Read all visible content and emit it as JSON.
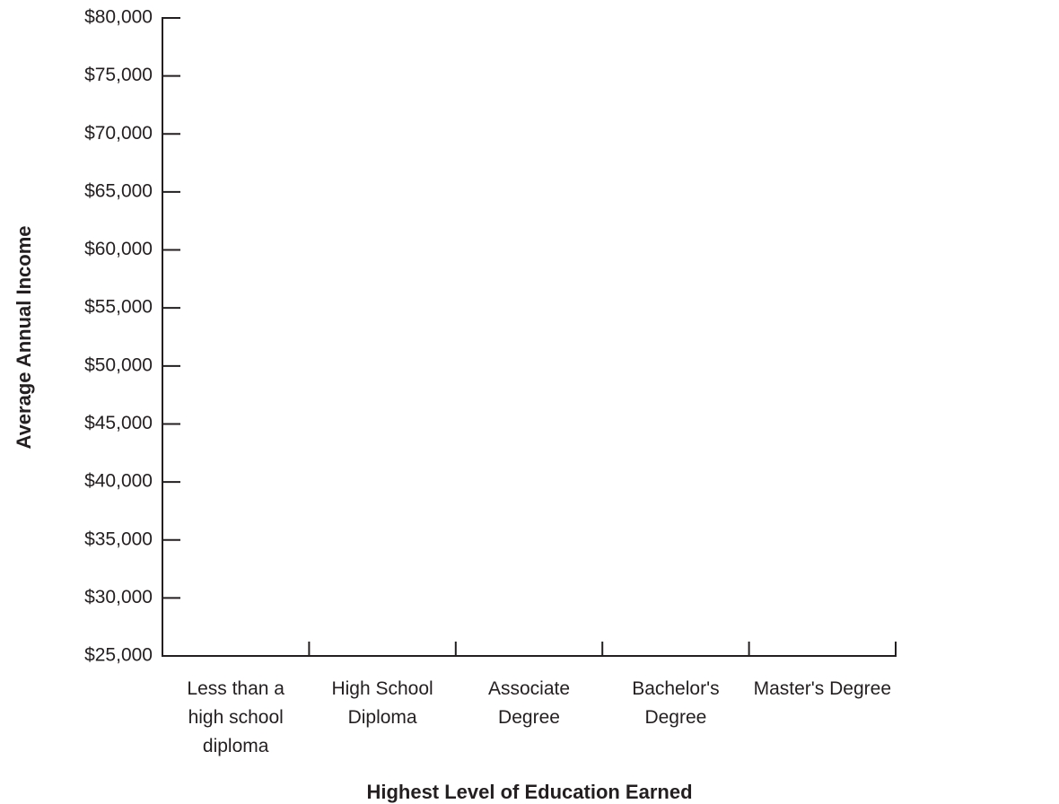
{
  "chart_data": {
    "type": "bar",
    "x_label": "Highest Level of Education Earned",
    "y_label": "Average Annual Income",
    "categories": [
      "Less than a high school diploma",
      "High School Diploma",
      "Associate Degree",
      "Bachelor's Degree",
      "Master's Degree"
    ],
    "ylim": [
      25000,
      80000
    ],
    "yticks": [
      {
        "value": 25000,
        "label": "$25,000"
      },
      {
        "value": 30000,
        "label": "$30,000"
      },
      {
        "value": 35000,
        "label": "$35,000"
      },
      {
        "value": 40000,
        "label": "$40,000"
      },
      {
        "value": 45000,
        "label": "$45,000"
      },
      {
        "value": 50000,
        "label": "$50,000"
      },
      {
        "value": 55000,
        "label": "$55,000"
      },
      {
        "value": 60000,
        "label": "$60,000"
      },
      {
        "value": 65000,
        "label": "$65,000"
      },
      {
        "value": 70000,
        "label": "$70,000"
      },
      {
        "value": 75000,
        "label": "$75,000"
      },
      {
        "value": 80000,
        "label": "$80,000"
      }
    ],
    "grid": false
  }
}
